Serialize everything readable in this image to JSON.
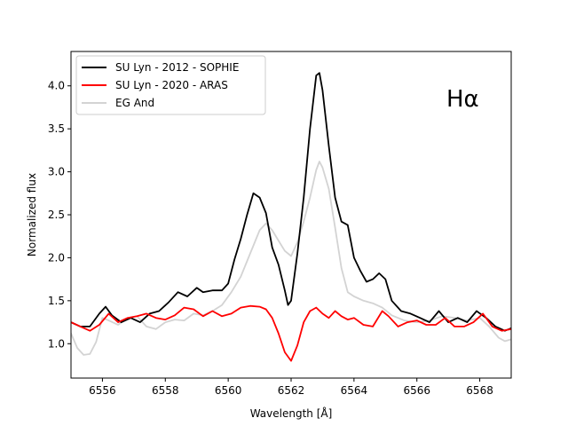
{
  "chart_data": {
    "type": "line",
    "title": "",
    "annotation": "Hα",
    "xlabel": "Wavelength [Å]",
    "ylabel": "Normalized flux",
    "xlim": [
      6555.0,
      6569.0
    ],
    "ylim": [
      0.6,
      4.4
    ],
    "xticks": [
      6556,
      6558,
      6560,
      6562,
      6564,
      6566,
      6568
    ],
    "xtick_labels": [
      "6556",
      "6558",
      "6560",
      "6562",
      "6564",
      "6566",
      "6568"
    ],
    "yticks": [
      1.0,
      1.5,
      2.0,
      2.5,
      3.0,
      3.5,
      4.0
    ],
    "ytick_labels": [
      "1.0",
      "1.5",
      "2.0",
      "2.5",
      "3.0",
      "3.5",
      "4.0"
    ],
    "grid": false,
    "legend_position": "top-left",
    "series": [
      {
        "name": "EG And",
        "color": "#d3d3d3",
        "x": [
          6555.0,
          6555.2,
          6555.4,
          6555.6,
          6555.8,
          6556.0,
          6556.2,
          6556.5,
          6556.8,
          6557.1,
          6557.4,
          6557.7,
          6558.0,
          6558.3,
          6558.6,
          6558.9,
          6559.2,
          6559.5,
          6559.8,
          6560.1,
          6560.4,
          6560.7,
          6561.0,
          6561.2,
          6561.4,
          6561.6,
          6561.8,
          6562.0,
          6562.2,
          6562.4,
          6562.6,
          6562.8,
          6562.9,
          6563.0,
          6563.2,
          6563.4,
          6563.6,
          6563.8,
          6564.0,
          6564.3,
          6564.6,
          6564.9,
          6565.2,
          6565.6,
          6566.0,
          6566.4,
          6566.8,
          6567.2,
          6567.6,
          6568.0,
          6568.3,
          6568.6,
          6568.8,
          6569.0
        ],
        "y": [
          1.12,
          0.95,
          0.87,
          0.88,
          1.02,
          1.3,
          1.27,
          1.22,
          1.3,
          1.32,
          1.2,
          1.17,
          1.25,
          1.28,
          1.27,
          1.35,
          1.33,
          1.38,
          1.45,
          1.6,
          1.78,
          2.05,
          2.32,
          2.4,
          2.32,
          2.2,
          2.08,
          2.02,
          2.18,
          2.42,
          2.7,
          3.02,
          3.12,
          3.05,
          2.8,
          2.35,
          1.88,
          1.6,
          1.55,
          1.5,
          1.47,
          1.42,
          1.33,
          1.27,
          1.25,
          1.27,
          1.32,
          1.3,
          1.27,
          1.3,
          1.2,
          1.07,
          1.03,
          1.05
        ]
      },
      {
        "name": "SU Lyn - 2012 - SOPHIE",
        "color": "#000000",
        "x": [
          6555.0,
          6555.3,
          6555.6,
          6555.9,
          6556.1,
          6556.3,
          6556.6,
          6556.9,
          6557.2,
          6557.5,
          6557.8,
          6558.1,
          6558.4,
          6558.7,
          6559.0,
          6559.2,
          6559.5,
          6559.8,
          6560.0,
          6560.2,
          6560.4,
          6560.6,
          6560.8,
          6561.0,
          6561.2,
          6561.4,
          6561.6,
          6561.8,
          6561.9,
          6562.0,
          6562.2,
          6562.4,
          6562.6,
          6562.8,
          6562.9,
          6563.0,
          6563.2,
          6563.4,
          6563.6,
          6563.8,
          6564.0,
          6564.2,
          6564.4,
          6564.6,
          6564.8,
          6565.0,
          6565.2,
          6565.5,
          6565.8,
          6566.1,
          6566.4,
          6566.7,
          6567.0,
          6567.3,
          6567.6,
          6567.9,
          6568.2,
          6568.5,
          6568.8,
          6569.0
        ],
        "y": [
          1.25,
          1.2,
          1.2,
          1.35,
          1.43,
          1.33,
          1.25,
          1.3,
          1.25,
          1.35,
          1.38,
          1.48,
          1.6,
          1.55,
          1.65,
          1.6,
          1.62,
          1.62,
          1.7,
          1.98,
          2.22,
          2.5,
          2.75,
          2.7,
          2.52,
          2.12,
          1.92,
          1.62,
          1.45,
          1.5,
          2.05,
          2.7,
          3.5,
          4.12,
          4.15,
          3.95,
          3.3,
          2.7,
          2.42,
          2.38,
          2.0,
          1.85,
          1.72,
          1.75,
          1.82,
          1.75,
          1.5,
          1.38,
          1.35,
          1.3,
          1.25,
          1.38,
          1.25,
          1.3,
          1.25,
          1.38,
          1.3,
          1.2,
          1.15,
          1.18
        ]
      },
      {
        "name": "SU Lyn - 2020 - ARAS",
        "color": "#ff0000",
        "x": [
          6555.0,
          6555.3,
          6555.6,
          6555.9,
          6556.2,
          6556.5,
          6556.8,
          6557.1,
          6557.4,
          6557.7,
          6558.0,
          6558.3,
          6558.6,
          6558.9,
          6559.2,
          6559.5,
          6559.8,
          6560.1,
          6560.4,
          6560.7,
          6561.0,
          6561.2,
          6561.4,
          6561.6,
          6561.8,
          6562.0,
          6562.2,
          6562.4,
          6562.6,
          6562.8,
          6563.0,
          6563.2,
          6563.4,
          6563.6,
          6563.8,
          6564.0,
          6564.3,
          6564.6,
          6564.9,
          6565.1,
          6565.4,
          6565.7,
          6566.0,
          6566.3,
          6566.6,
          6566.9,
          6567.2,
          6567.5,
          6567.8,
          6568.1,
          6568.4,
          6568.7,
          6569.0
        ],
        "y": [
          1.25,
          1.2,
          1.15,
          1.22,
          1.35,
          1.25,
          1.3,
          1.32,
          1.35,
          1.3,
          1.28,
          1.33,
          1.42,
          1.4,
          1.32,
          1.38,
          1.32,
          1.35,
          1.42,
          1.44,
          1.43,
          1.4,
          1.3,
          1.12,
          0.9,
          0.8,
          0.98,
          1.25,
          1.38,
          1.42,
          1.35,
          1.3,
          1.38,
          1.32,
          1.28,
          1.3,
          1.22,
          1.2,
          1.38,
          1.32,
          1.2,
          1.25,
          1.27,
          1.22,
          1.22,
          1.3,
          1.2,
          1.2,
          1.25,
          1.35,
          1.2,
          1.15,
          1.17
        ]
      }
    ]
  }
}
